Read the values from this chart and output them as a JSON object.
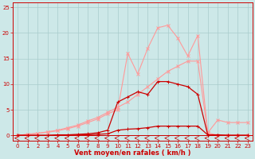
{
  "x": [
    0,
    1,
    2,
    3,
    4,
    5,
    6,
    7,
    8,
    9,
    10,
    11,
    12,
    13,
    14,
    15,
    16,
    17,
    18,
    19,
    20,
    21,
    22,
    23
  ],
  "line1_y": [
    0,
    0,
    0,
    0,
    0,
    0.05,
    0.05,
    0.1,
    0.2,
    0.3,
    1.0,
    1.2,
    1.3,
    1.5,
    1.8,
    1.8,
    1.8,
    1.8,
    1.8,
    0.1,
    0.1,
    0.0,
    0.0,
    0.0
  ],
  "line2_y": [
    0,
    0,
    0,
    0,
    0.1,
    0.1,
    0.2,
    0.3,
    0.5,
    1.0,
    6.5,
    7.5,
    8.5,
    8.0,
    10.5,
    10.5,
    10.0,
    9.5,
    8.0,
    0.1,
    0.0,
    0.0,
    0.0,
    0.0
  ],
  "line3_y": [
    0,
    0.2,
    0.4,
    0.6,
    0.9,
    1.3,
    1.8,
    2.5,
    3.2,
    4.2,
    5.0,
    16.0,
    12.0,
    17.0,
    21.0,
    21.5,
    19.0,
    15.5,
    19.5,
    0.5,
    3.0,
    2.5,
    2.5,
    2.5
  ],
  "line4_y": [
    0,
    0.2,
    0.4,
    0.7,
    1.0,
    1.5,
    2.0,
    2.8,
    3.5,
    4.5,
    5.5,
    6.5,
    8.0,
    9.5,
    11.0,
    12.5,
    13.5,
    14.5,
    14.5,
    0.5,
    0.0,
    0.0,
    0.0,
    0.0
  ],
  "bg_color": "#cde8e8",
  "grid_color": "#a8cccc",
  "line1_color": "#cc0000",
  "line2_color": "#cc0000",
  "line3_color": "#ff9999",
  "line4_color": "#ff9999",
  "xlabel": "Vent moyen/en rafales ( km/h )",
  "ylim": [
    -1,
    26
  ],
  "xlim": [
    -0.5,
    23.5
  ],
  "yticks": [
    0,
    5,
    10,
    15,
    20,
    25
  ],
  "xticks": [
    0,
    1,
    2,
    3,
    4,
    5,
    6,
    7,
    8,
    9,
    10,
    11,
    12,
    13,
    14,
    15,
    16,
    17,
    18,
    19,
    20,
    21,
    22,
    23
  ],
  "tick_fontsize": 5,
  "xlabel_fontsize": 6
}
